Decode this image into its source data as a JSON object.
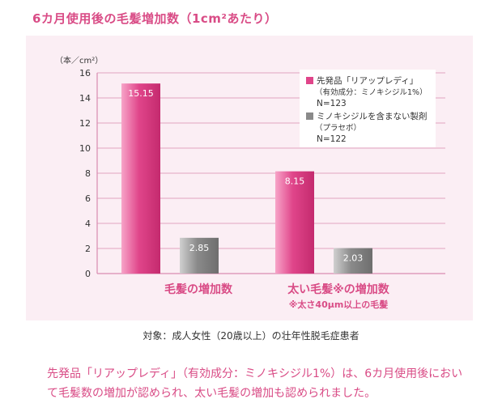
{
  "title": "6カ月使用後の毛髪増加数（1cm²あたり）",
  "subject": "対象：成人女性（20歳以上）の壮年性脱毛症患者",
  "footer_text": "先発品「リアップレディ」（有効成分：ミノキシジル1%）は、6カ月使用後において毛髪数の増加が認められ、太い毛髪の増加も認められました。",
  "colors": {
    "title": "#d94c86",
    "panel": "#fbeef4",
    "grid": "#d98bb0",
    "series_a": "#e0458a",
    "series_b": "#8a8a8a"
  },
  "chart_data": {
    "type": "bar",
    "ylabel": "（本／cm²）",
    "ylim": [
      0,
      16
    ],
    "yticks": [
      "0",
      "2",
      "4",
      "6",
      "8",
      "10",
      "12",
      "14",
      "16"
    ],
    "categories": [
      "毛髪の増加数",
      "太い毛髪※の増加数"
    ],
    "category_note": "※太さ40μm以上の毛髪",
    "series": [
      {
        "name": "先発品「リアップレディ」",
        "detail": "（有効成分：ミノキシジル1%）",
        "n": "N=123",
        "values": [
          15.15,
          8.15
        ],
        "labels": [
          "15.15",
          "8.15"
        ]
      },
      {
        "name": "ミノキシジルを含まない製剤",
        "detail": "（プラセボ）",
        "n": "N=122",
        "values": [
          2.85,
          2.03
        ],
        "labels": [
          "2.85",
          "2.03"
        ]
      }
    ],
    "grid": true,
    "legend": "top-right"
  }
}
